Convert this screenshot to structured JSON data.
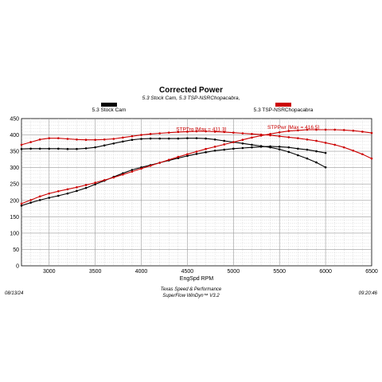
{
  "chart_data": {
    "type": "line",
    "title": "Corrected Power",
    "subtitle": "5.3 Stock Cam, 5.3 TSP-NSRChopacabra,",
    "xlabel": "EngSpd RPM",
    "ylabel": "",
    "xlim": [
      2700,
      6500
    ],
    "ylim": [
      0,
      450
    ],
    "x_ticks": [
      "3000",
      "3500",
      "4000",
      "4500",
      "5000",
      "5500",
      "6000",
      "6500"
    ],
    "y_ticks": [
      "0",
      "50",
      "100",
      "150",
      "200",
      "250",
      "300",
      "350",
      "400",
      "450"
    ],
    "grid": true,
    "legend": [
      {
        "label": "5.3 Stock Cam",
        "color": "#000000"
      },
      {
        "label": "5.3 TSP-NSRChopacabra",
        "color": "#cc0000"
      }
    ],
    "annotations": [
      {
        "text": "STPTrq [Max = 411.3]",
        "x": 4650,
        "y": 412,
        "color": "#cc0000"
      },
      {
        "text": "STPPwr [Max = 416.5]",
        "x": 5650,
        "y": 418,
        "color": "#cc0000"
      }
    ],
    "series": [
      {
        "color": "#000000",
        "x": [
          2700,
          2800,
          2900,
          3000,
          3100,
          3200,
          3300,
          3400,
          3500,
          3600,
          3700,
          3800,
          3900,
          4000,
          4100,
          4200,
          4300,
          4400,
          4500,
          4600,
          4700,
          4800,
          4900,
          5000,
          5100,
          5200,
          5300,
          5400,
          5500,
          5600,
          5700,
          5800,
          5900,
          6000
        ],
        "y": [
          357,
          358,
          358,
          358,
          358,
          357,
          357,
          359,
          362,
          368,
          374,
          380,
          385,
          388,
          389,
          389,
          389,
          389,
          390,
          390,
          389,
          386,
          382,
          378,
          374,
          370,
          366,
          362,
          356,
          348,
          338,
          328,
          316,
          301
        ]
      },
      {
        "color": "#000000",
        "x": [
          2700,
          2800,
          2900,
          3000,
          3100,
          3200,
          3300,
          3400,
          3500,
          3600,
          3700,
          3800,
          3900,
          4000,
          4100,
          4200,
          4300,
          4400,
          4500,
          4600,
          4700,
          4800,
          4900,
          5000,
          5100,
          5200,
          5300,
          5400,
          5500,
          5600,
          5700,
          5800,
          5900,
          6000
        ],
        "y": [
          184,
          193,
          201,
          208,
          214,
          221,
          229,
          238,
          249,
          260,
          272,
          283,
          293,
          301,
          308,
          315,
          322,
          329,
          336,
          342,
          347,
          352,
          355,
          358,
          360,
          362,
          364,
          365,
          364,
          362,
          358,
          355,
          350,
          345
        ]
      },
      {
        "color": "#cc0000",
        "x": [
          2700,
          2800,
          2900,
          3000,
          3100,
          3200,
          3300,
          3400,
          3500,
          3600,
          3700,
          3800,
          3900,
          4000,
          4100,
          4200,
          4300,
          4400,
          4500,
          4600,
          4700,
          4800,
          4900,
          5000,
          5100,
          5200,
          5300,
          5400,
          5500,
          5600,
          5700,
          5800,
          5900,
          6000,
          6100,
          6200,
          6300,
          6400,
          6500
        ],
        "y": [
          370,
          378,
          386,
          390,
          390,
          388,
          386,
          385,
          385,
          386,
          388,
          392,
          396,
          400,
          403,
          405,
          407,
          409,
          410,
          411,
          411,
          410,
          409,
          407,
          405,
          403,
          401,
          399,
          396,
          393,
          390,
          386,
          382,
          376,
          370,
          362,
          352,
          341,
          328
        ]
      },
      {
        "color": "#cc0000",
        "x": [
          2700,
          2800,
          2900,
          3000,
          3100,
          3200,
          3300,
          3400,
          3500,
          3600,
          3700,
          3800,
          3900,
          4000,
          4100,
          4200,
          4300,
          4400,
          4500,
          4600,
          4700,
          4800,
          4900,
          5000,
          5100,
          5200,
          5300,
          5400,
          5500,
          5600,
          5700,
          5800,
          5900,
          6000,
          6100,
          6200,
          6300,
          6400,
          6500
        ],
        "y": [
          190,
          201,
          212,
          221,
          228,
          234,
          240,
          247,
          254,
          262,
          270,
          279,
          288,
          297,
          306,
          315,
          324,
          333,
          341,
          349,
          357,
          364,
          371,
          378,
          385,
          392,
          398,
          403,
          408,
          412,
          414,
          416,
          416,
          416,
          416,
          415,
          413,
          410,
          406
        ]
      }
    ]
  },
  "footer": {
    "date": "08/13/24",
    "company": "Texas Speed & Performance",
    "software": "SuperFlow WinDyn™  V3.2",
    "time": "09:20:46"
  }
}
